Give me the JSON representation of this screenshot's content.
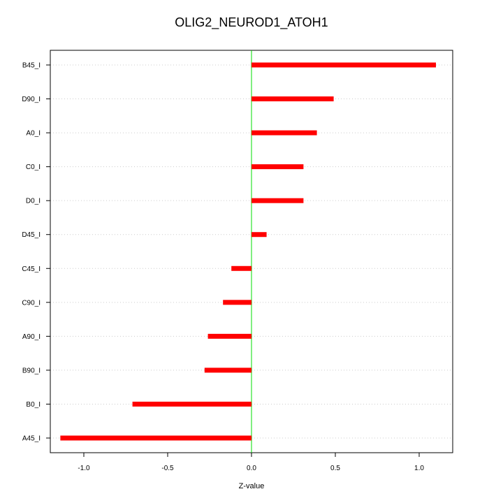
{
  "chart_data": {
    "type": "bar",
    "orientation": "horizontal",
    "title": "OLIG2_NEUROD1_ATOH1",
    "xlabel": "Z-value",
    "ylabel": "",
    "xlim": [
      -1.2,
      1.2
    ],
    "xticks": [
      -1.0,
      -0.5,
      0.0,
      0.5,
      1.0
    ],
    "xtick_labels": [
      "-1.0",
      "-0.5",
      "0.0",
      "0.5",
      "1.0"
    ],
    "grid": "horizontal dotted",
    "categories": [
      "B45_I",
      "D90_I",
      "A0_I",
      "C0_I",
      "D0_I",
      "D45_I",
      "C45_I",
      "C90_I",
      "A90_I",
      "B90_I",
      "B0_I",
      "A45_I"
    ],
    "values": [
      1.1,
      0.49,
      0.39,
      0.31,
      0.31,
      0.09,
      -0.12,
      -0.17,
      -0.26,
      -0.28,
      -0.71,
      -1.14
    ],
    "colors": {
      "bar": "#ff0000",
      "zero_line": "#00dd00",
      "grid": "#cccccc",
      "axis": "#000000"
    }
  }
}
